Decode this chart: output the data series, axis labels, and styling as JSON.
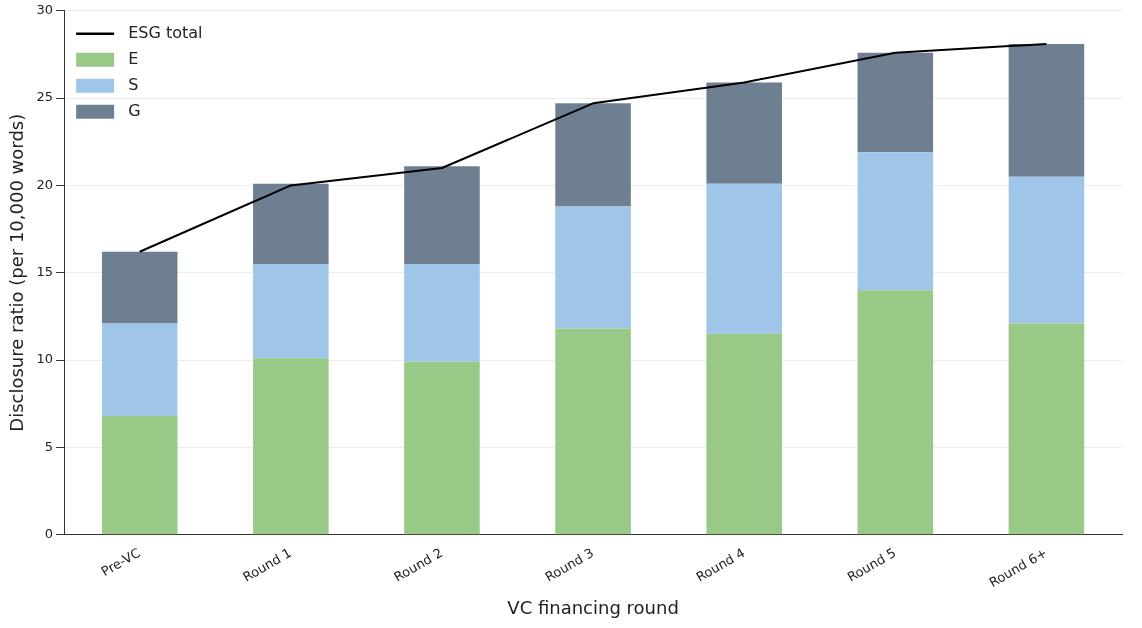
{
  "chart_data": {
    "type": "bar",
    "stacked": true,
    "xlabel": "VC financing round",
    "ylabel": "Disclosure ratio (per 10,000 words)",
    "categories": [
      "Pre-VC",
      "Round 1",
      "Round 2",
      "Round 3",
      "Round 4",
      "Round 5",
      "Round 6+"
    ],
    "series": [
      {
        "name": "ESG total",
        "type": "line",
        "color": "#000000",
        "values": [
          16.2,
          20.0,
          21.0,
          24.7,
          25.9,
          27.6,
          28.1
        ]
      },
      {
        "name": "E",
        "color": "#98c987",
        "values": [
          6.8,
          10.1,
          9.9,
          11.8,
          11.5,
          14.0,
          12.1
        ]
      },
      {
        "name": "S",
        "color": "#9fc5e8",
        "values": [
          5.3,
          5.4,
          5.6,
          7.0,
          8.6,
          7.9,
          8.4
        ]
      },
      {
        "name": "G",
        "color": "#6e7f91",
        "values": [
          4.1,
          4.6,
          5.6,
          5.9,
          5.8,
          5.7,
          7.6
        ]
      }
    ],
    "ylim": [
      0,
      30
    ],
    "yticks": [
      0,
      5,
      10,
      15,
      20,
      25,
      30
    ],
    "grid": "y",
    "legend": "top left",
    "marker": "none",
    "line_style": "solid"
  }
}
